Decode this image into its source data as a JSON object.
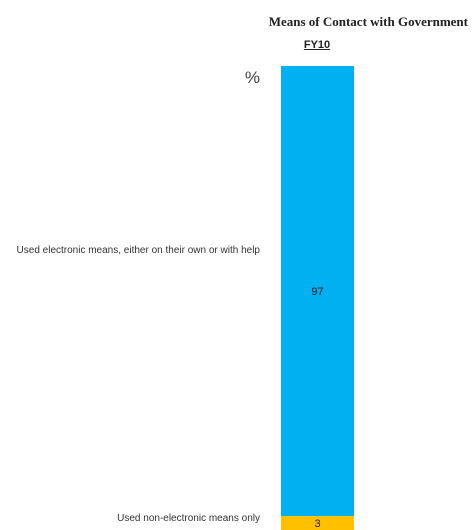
{
  "chart_data": {
    "type": "bar",
    "stacked": true,
    "title": "Means of Contact with Government",
    "categories": [
      "FY10"
    ],
    "unit_label": "%",
    "series": [
      {
        "name": "Used electronic means, either on their own or with help",
        "values": [
          97
        ],
        "color": "#00b0f0"
      },
      {
        "name": "Used non-electronic means only",
        "values": [
          3
        ],
        "color": "#ffc000"
      }
    ],
    "ylim": [
      0,
      100
    ]
  }
}
